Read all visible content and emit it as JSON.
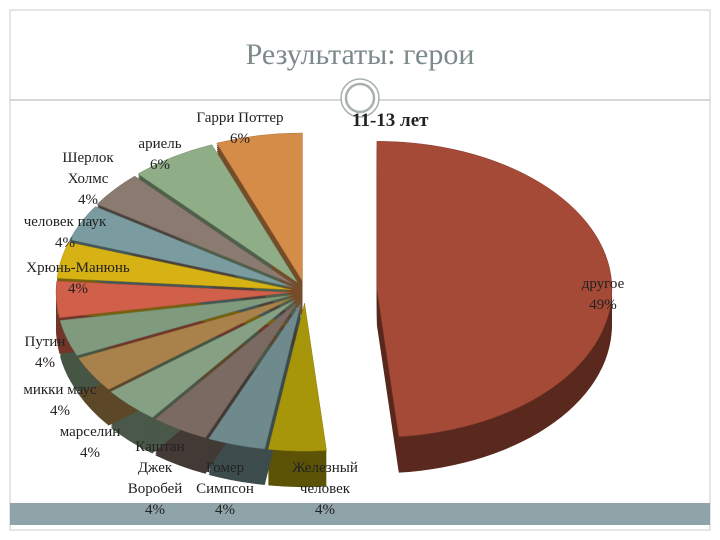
{
  "chart_data": {
    "type": "pie",
    "title": "Результаты: герои",
    "subtitle": "11-13 лет",
    "categories": [
      "другое",
      "Железный человек",
      "Гомер Симпсон",
      "Джек Воробей",
      "Каштан",
      "марселин",
      "микки маус",
      "Путин",
      "Хрюнь-Манюнь",
      "человек паук",
      "Шерлок Холмс",
      "ариель",
      "Гарри Поттер"
    ],
    "values": [
      49,
      4,
      4,
      4,
      4,
      4,
      4,
      4,
      4,
      4,
      4,
      6,
      6
    ],
    "value_labels": [
      "49%",
      "4%",
      "4%",
      "4%",
      null,
      "4%",
      "4%",
      "4%",
      "4%",
      "4%",
      "4%",
      "6%",
      "6%"
    ],
    "colors": [
      "#a44a36",
      "#a8960a",
      "#6f8a8c",
      "#7a6a62",
      "#86a084",
      "#a8824a",
      "#7f9a7c",
      "#d0604a",
      "#d6b214",
      "#7a9ca0",
      "#8a7a70",
      "#8fae88",
      "#d48c48"
    ]
  }
}
